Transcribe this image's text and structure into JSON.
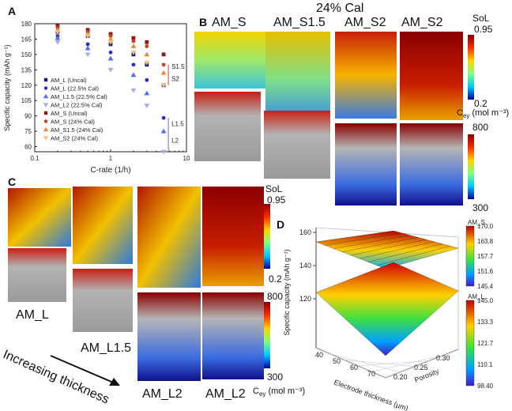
{
  "panels": {
    "A": "A",
    "B": "B",
    "C": "C",
    "D": "D"
  },
  "chart_a": {
    "chart_data": {
      "type": "scatter",
      "xlabel": "C-rate (1/h)",
      "ylabel": "Specific capacity (mAh g⁻¹)",
      "xscale": "log",
      "xlim": [
        0.1,
        10
      ],
      "ylim": [
        55,
        180
      ],
      "xticks": [
        "0.1",
        "1",
        "10"
      ],
      "yticks": [
        "60",
        "75",
        "90",
        "105",
        "120",
        "135",
        "150",
        "165",
        "180"
      ],
      "x": [
        0.2,
        0.5,
        1,
        2,
        3,
        5
      ],
      "series": [
        {
          "name": "AM_L (Uncal)",
          "color": "#1a1a7a",
          "marker": "square",
          "values": [
            172,
            168,
            160,
            150,
            140,
            120
          ]
        },
        {
          "name": "AM_L (22.5% Cal)",
          "color": "#2a2ad0",
          "marker": "circle",
          "values": [
            168,
            160,
            152,
            140,
            125,
            88
          ]
        },
        {
          "name": "AM_L1.5 (22.5% Cal)",
          "color": "#4f6ef0",
          "marker": "triangle-up",
          "values": [
            166,
            156,
            146,
            130,
            112,
            75
          ]
        },
        {
          "name": "AM_L2 (22.5% Cal)",
          "color": "#a9a9f2",
          "marker": "triangle-down",
          "values": [
            162,
            150,
            135,
            115,
            100,
            55
          ]
        },
        {
          "name": "AM_S (Uncal)",
          "color": "#8b1a1a",
          "marker": "square",
          "values": [
            178,
            174,
            170,
            166,
            162,
            150
          ]
        },
        {
          "name": "AM_S (24% Cal)",
          "color": "#d23a1e",
          "marker": "circle",
          "values": [
            176,
            172,
            168,
            163,
            158,
            140
          ]
        },
        {
          "name": "AM_S1.5 (24% Cal)",
          "color": "#e58a3a",
          "marker": "triangle-up",
          "values": [
            174,
            170,
            165,
            158,
            150,
            132
          ]
        },
        {
          "name": "AM_S2 (24% Cal)",
          "color": "#f2c27a",
          "marker": "triangle-down",
          "values": [
            172,
            168,
            162,
            152,
            142,
            120
          ]
        }
      ],
      "annotations": [
        "S1.5",
        "S2",
        "L1.5",
        "L2"
      ]
    }
  },
  "panel_b": {
    "title": "24% Cal",
    "labels": [
      "AM_S",
      "AM_S1.5",
      "AM_S2",
      "AM_S2"
    ],
    "cbar_sol_title": "SoL",
    "cbar_sol_top": "0.95",
    "cbar_sol_bottom": "0.2",
    "cbar_cey_title": "C",
    "cbar_cey_sub": "ey",
    "cbar_cey_unit": " (mol m⁻³)",
    "cbar_cey_top": "800",
    "cbar_cey_bottom": "300"
  },
  "panel_c": {
    "labels": [
      "AM_L",
      "AM_L1.5",
      "AM_L2",
      "AM_L2"
    ],
    "arrow_text": "Increasing  thickness",
    "cbar_sol_title": "SoL",
    "cbar_sol_top": "0.95",
    "cbar_sol_bottom": "0.2",
    "cbar_cey_top": "800",
    "cbar_cey_bottom": "300",
    "cbar_cey_title": "C",
    "cbar_cey_sub": "ey",
    "cbar_cey_unit": " (mol m⁻³)"
  },
  "chart_d": {
    "chart_data": {
      "type": "surface",
      "zlabel": "Specific capacity (mAh g⁻¹)",
      "xlabel": "Electrode thickness (µm)",
      "ylabel": "Porosity",
      "zticks": [
        "120",
        "140",
        "160"
      ],
      "xticks": [
        "40",
        "50",
        "60",
        "70"
      ],
      "yticks": [
        "0.20",
        "0.25",
        "0.30"
      ],
      "cbar_top": {
        "name": "AM_S",
        "ticks": [
          "170.0",
          "163.8",
          "157.7",
          "151.6",
          "145.4"
        ]
      },
      "cbar_bottom": {
        "name": "AM_L",
        "ticks": [
          "145.0",
          "133.3",
          "121.7",
          "110.1",
          "98.40"
        ]
      }
    }
  }
}
